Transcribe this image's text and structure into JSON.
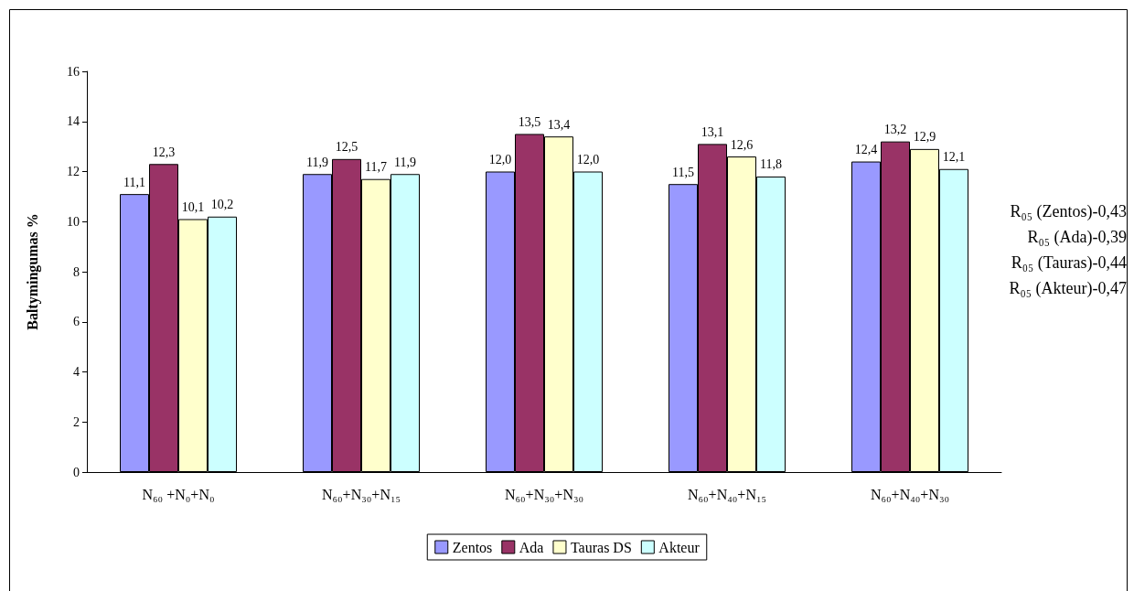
{
  "chart_data": {
    "type": "bar",
    "ylabel": "Baltymingumas %",
    "categories": [
      "N₆₀ +N₀+N₀",
      "N₆₀+N₃₀+N₁₅",
      "N₆₀+N₃₀+N₃₀",
      "N₆₀+N₄₀+N₁₅",
      "N₆₀+N₄₀+N₃₀"
    ],
    "series": [
      {
        "name": "Zentos",
        "color": "#9999ff",
        "values": [
          11.1,
          11.9,
          12.0,
          11.5,
          12.4
        ],
        "value_labels": [
          "11,1",
          "11,9",
          "12,0",
          "11,5",
          "12,4"
        ]
      },
      {
        "name": "Ada",
        "color": "#993366",
        "values": [
          12.3,
          12.5,
          13.5,
          13.1,
          13.2
        ],
        "value_labels": [
          "12,3",
          "12,5",
          "13,5",
          "13,1",
          "13,2"
        ]
      },
      {
        "name": "Tauras DS",
        "color": "#ffffcc",
        "values": [
          10.1,
          11.7,
          13.4,
          12.6,
          12.9
        ],
        "value_labels": [
          "10,1",
          "11,7",
          "13,4",
          "12,6",
          "12,9"
        ]
      },
      {
        "name": "Akteur",
        "color": "#ccffff",
        "values": [
          10.2,
          11.9,
          12.0,
          11.8,
          12.1
        ],
        "value_labels": [
          "10,2",
          "11,9",
          "12,0",
          "11,8",
          "12,1"
        ]
      }
    ],
    "ylim": [
      0,
      16
    ],
    "yticks": [
      0,
      2,
      4,
      6,
      8,
      10,
      12,
      14,
      16
    ],
    "grid": false,
    "legend": "bottom",
    "annotations": [
      "R₀₅ (Zentos)-0,43",
      "R₀₅ (Ada)-0,39",
      "R₀₅ (Tauras)-0,44",
      "R₀₅ (Akteur)-0,47"
    ]
  }
}
